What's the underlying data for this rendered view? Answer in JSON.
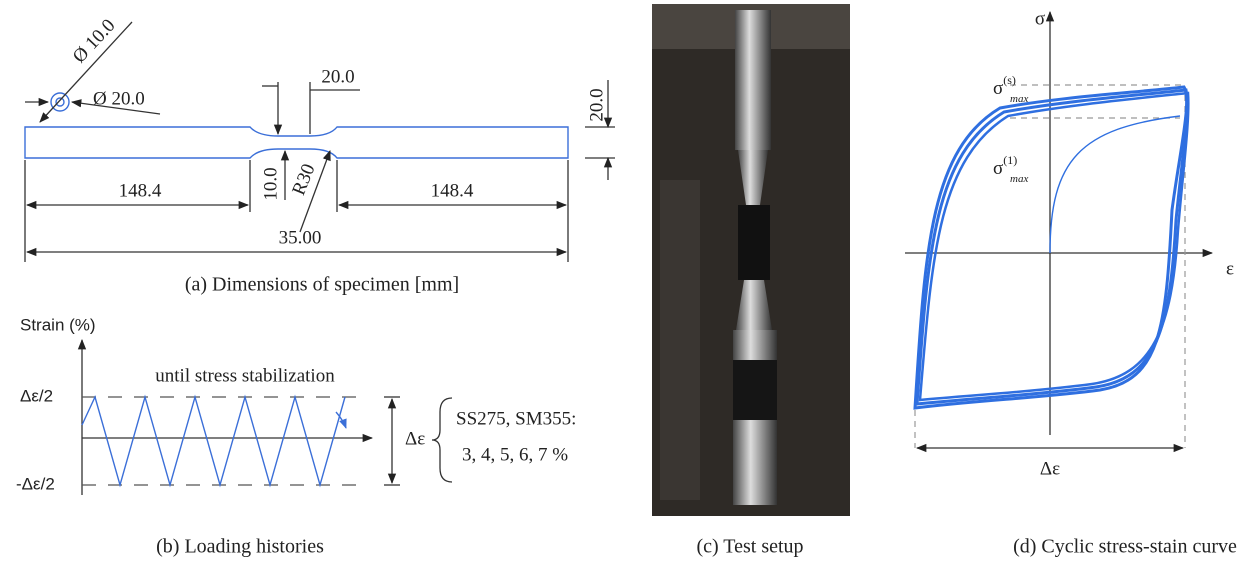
{
  "panel_a": {
    "labels": {
      "dia_small": "Ø 10.0",
      "dia_large": "Ø 20.0",
      "gauge_length": "20.0",
      "grip_width": "20.0",
      "left_grip": "148.4",
      "gauge_width": "10.0",
      "radius": "R30",
      "right_grip": "148.4",
      "total_length": "35.00"
    },
    "caption": "(a) Dimensions of specimen [mm]"
  },
  "panel_b": {
    "y_axis": "Strain (%)",
    "note": "until stress stabilization",
    "upper": "Δε/2",
    "lower": "-Δε/2",
    "range": "Δε",
    "steels": "SS275, SM355:",
    "amplitudes": "3, 4, 5, 6, 7 %",
    "caption": "(b) Loading histories"
  },
  "panel_c": {
    "caption": "(c) Test setup"
  },
  "panel_d": {
    "y_axis": "σ",
    "x_axis": "ε",
    "sigma_s": {
      "base": "σ",
      "sup": "(s)",
      "sub": "max"
    },
    "sigma_1": {
      "base": "σ",
      "sup": "(1)",
      "sub": "max"
    },
    "range": "Δε",
    "caption": "(d) Cyclic stress-stain curve"
  }
}
